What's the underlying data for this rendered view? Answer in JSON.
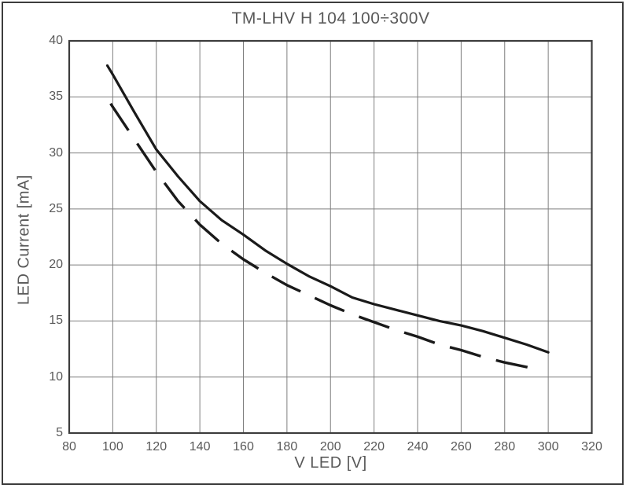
{
  "colors": {
    "background": "#ffffff",
    "frame": "#3d3d3d",
    "grid": "#7f7f7f",
    "axis_border": "#3d3d3d",
    "curve": "#1a1a1a",
    "text": "#595959"
  },
  "chart_data": {
    "type": "line",
    "title": "TM-LHV H 104 100÷300V",
    "xlabel": "V LED [V]",
    "ylabel": "LED Current [mA]",
    "xlim": [
      80,
      320
    ],
    "ylim": [
      5,
      40
    ],
    "x_ticks": [
      80,
      100,
      120,
      140,
      160,
      180,
      200,
      220,
      240,
      260,
      280,
      300,
      320
    ],
    "y_ticks": [
      5,
      10,
      15,
      20,
      25,
      30,
      35,
      40
    ],
    "grid": true,
    "legend": false,
    "series": [
      {
        "style": "solid",
        "points": [
          [
            97.5,
            37.8
          ],
          [
            100,
            37.0
          ],
          [
            110,
            33.6
          ],
          [
            120,
            30.3
          ],
          [
            130,
            27.9
          ],
          [
            140,
            25.7
          ],
          [
            150,
            24.0
          ],
          [
            160,
            22.7
          ],
          [
            170,
            21.3
          ],
          [
            180,
            20.1
          ],
          [
            190,
            19.0
          ],
          [
            200,
            18.1
          ],
          [
            210,
            17.1
          ],
          [
            220,
            16.5
          ],
          [
            230,
            16.0
          ],
          [
            240,
            15.5
          ],
          [
            250,
            15.0
          ],
          [
            260,
            14.6
          ],
          [
            270,
            14.1
          ],
          [
            280,
            13.5
          ],
          [
            290,
            12.9
          ],
          [
            300,
            12.2
          ]
        ]
      },
      {
        "style": "dashed",
        "points": [
          [
            99,
            34.4
          ],
          [
            100,
            34.1
          ],
          [
            110,
            31.2
          ],
          [
            120,
            28.3
          ],
          [
            130,
            25.7
          ],
          [
            140,
            23.6
          ],
          [
            150,
            21.9
          ],
          [
            160,
            20.5
          ],
          [
            170,
            19.3
          ],
          [
            180,
            18.2
          ],
          [
            190,
            17.3
          ],
          [
            200,
            16.4
          ],
          [
            210,
            15.6
          ],
          [
            220,
            14.9
          ],
          [
            230,
            14.2
          ],
          [
            240,
            13.6
          ],
          [
            250,
            12.9
          ],
          [
            260,
            12.4
          ],
          [
            270,
            11.8
          ],
          [
            280,
            11.3
          ],
          [
            290,
            10.9
          ],
          [
            297,
            10.6
          ]
        ]
      }
    ]
  }
}
